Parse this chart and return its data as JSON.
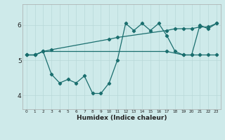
{
  "title": "",
  "xlabel": "Humidex (Indice chaleur)",
  "ylabel": "",
  "bg_color": "#ceeaea",
  "line_color": "#1a6e6e",
  "grid_color": "#b8d8d8",
  "x_ticks": [
    0,
    1,
    2,
    3,
    4,
    5,
    6,
    7,
    8,
    9,
    10,
    11,
    12,
    13,
    14,
    15,
    16,
    17,
    18,
    19,
    20,
    21,
    22,
    23
  ],
  "ylim": [
    3.6,
    6.6
  ],
  "yticks": [
    4,
    5,
    6
  ],
  "series1_x": [
    0,
    1,
    2,
    3,
    4,
    5,
    6,
    7,
    8,
    9,
    10,
    11,
    12,
    13,
    14,
    15,
    16,
    17,
    18,
    19,
    20,
    21,
    22,
    23
  ],
  "series1": [
    5.15,
    5.15,
    5.25,
    4.6,
    4.35,
    4.45,
    4.35,
    4.55,
    4.05,
    4.05,
    4.35,
    5.0,
    6.05,
    5.85,
    6.05,
    5.85,
    6.05,
    5.7,
    5.25,
    5.15,
    5.15,
    6.0,
    5.9,
    6.05
  ],
  "series2_x": [
    0,
    1,
    2,
    17,
    19,
    20,
    21,
    22,
    23
  ],
  "series2": [
    5.15,
    5.15,
    5.25,
    5.25,
    5.15,
    5.15,
    5.15,
    5.15,
    5.15
  ],
  "series3_x": [
    0,
    1,
    2,
    3,
    10,
    11,
    17,
    18,
    19,
    20,
    21,
    22,
    23
  ],
  "series3": [
    5.15,
    5.15,
    5.25,
    5.3,
    5.6,
    5.65,
    5.85,
    5.9,
    5.9,
    5.9,
    5.95,
    5.95,
    6.05
  ]
}
